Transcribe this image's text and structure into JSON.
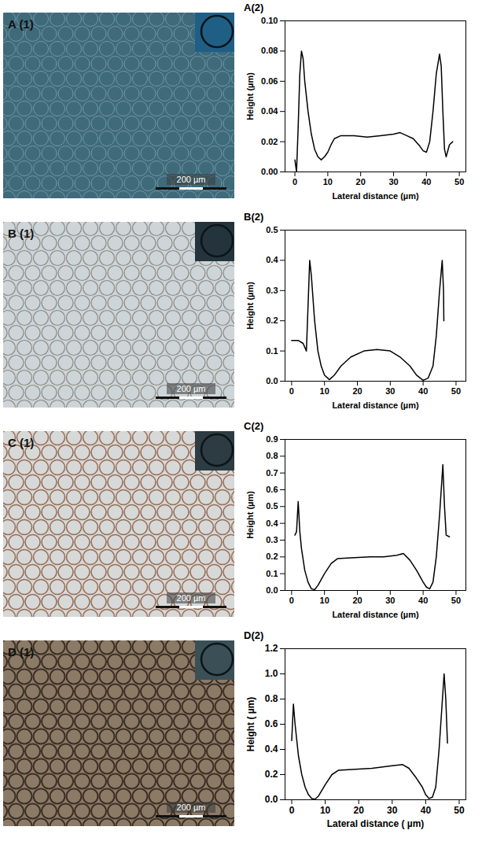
{
  "images": [
    {
      "label": "A (1)",
      "scale_bar": "200 µm"
    },
    {
      "label": "B (1)",
      "scale_bar": "200 µm"
    },
    {
      "label": "C (1)",
      "scale_bar": "200 µm"
    },
    {
      "label": "D (1)",
      "scale_bar": "200 µm"
    }
  ],
  "chart_data": [
    {
      "type": "line",
      "title": "A(2)",
      "x_label": "Lateral distance (µm)",
      "y_label": "Height (µm)",
      "color": "#000000",
      "x": [
        0,
        0.5,
        1,
        1.5,
        2,
        2.5,
        3,
        4,
        5,
        6,
        7,
        8,
        9,
        10,
        11,
        12,
        14,
        18,
        22,
        26,
        30,
        32,
        34,
        36,
        38,
        39,
        40,
        41,
        42,
        43,
        44,
        44.5,
        45,
        45.5,
        46,
        47,
        48
      ],
      "values": [
        0.008,
        0.0,
        0.03,
        0.065,
        0.08,
        0.075,
        0.06,
        0.04,
        0.025,
        0.015,
        0.01,
        0.008,
        0.01,
        0.013,
        0.018,
        0.022,
        0.024,
        0.024,
        0.023,
        0.024,
        0.025,
        0.026,
        0.024,
        0.022,
        0.017,
        0.014,
        0.013,
        0.02,
        0.04,
        0.065,
        0.078,
        0.07,
        0.04,
        0.015,
        0.01,
        0.018,
        0.02
      ],
      "xlim": [
        -3,
        52
      ],
      "xticks": [
        0,
        10,
        20,
        30,
        40,
        50
      ],
      "ylim": [
        0,
        0.1
      ],
      "yticks": [
        {
          "value": 0,
          "label": "0.00"
        },
        {
          "value": 0.02,
          "label": "0.02"
        },
        {
          "value": 0.04,
          "label": "0.04"
        },
        {
          "value": 0.06,
          "label": "0.06"
        },
        {
          "value": 0.08,
          "label": "0.08"
        },
        {
          "value": 0.1,
          "label": "0.10"
        }
      ]
    },
    {
      "type": "line",
      "title": "B(2)",
      "x_label": "Lateral distance (µm)",
      "y_label": "Height (µm)",
      "color": "#000000",
      "x": [
        0,
        2,
        3.5,
        4.5,
        5,
        5.5,
        6,
        7,
        8,
        9,
        10,
        11.5,
        13,
        15,
        18,
        22,
        26,
        30,
        33,
        36,
        38,
        40,
        41.5,
        43,
        44,
        45,
        45.8,
        46.2,
        46.3
      ],
      "values": [
        0.135,
        0.135,
        0.125,
        0.1,
        0.25,
        0.4,
        0.35,
        0.2,
        0.1,
        0.05,
        0.02,
        0.005,
        0.02,
        0.05,
        0.08,
        0.1,
        0.105,
        0.1,
        0.08,
        0.05,
        0.02,
        0.003,
        0.01,
        0.05,
        0.15,
        0.3,
        0.4,
        0.3,
        0.2
      ],
      "xlim": [
        -2,
        53
      ],
      "xticks": [
        0,
        10,
        20,
        30,
        40,
        50
      ],
      "ylim": [
        0,
        0.5
      ],
      "yticks": [
        {
          "value": 0,
          "label": "0.0"
        },
        0.1,
        0.2,
        0.3,
        0.4,
        0.5
      ]
    },
    {
      "type": "line",
      "title": "C(2)",
      "x_label": "Lateral distance (µm)",
      "y_label": "Height (µm)",
      "color": "#000000",
      "x": [
        1,
        1.5,
        2,
        2.5,
        3,
        4,
        5,
        6,
        7,
        8,
        10,
        12,
        14,
        18,
        24,
        28,
        32,
        34,
        36,
        38,
        40,
        41,
        42,
        43,
        44,
        45,
        46,
        46.5,
        47,
        48
      ],
      "values": [
        0.33,
        0.35,
        0.53,
        0.35,
        0.25,
        0.12,
        0.05,
        0.01,
        0.005,
        0.03,
        0.1,
        0.16,
        0.19,
        0.195,
        0.2,
        0.2,
        0.21,
        0.22,
        0.18,
        0.12,
        0.05,
        0.02,
        0.01,
        0.05,
        0.2,
        0.45,
        0.75,
        0.5,
        0.33,
        0.32
      ],
      "xlim": [
        -2,
        53
      ],
      "xticks": [
        0,
        10,
        20,
        30,
        40,
        50
      ],
      "ylim": [
        0,
        0.9
      ],
      "yticks": [
        {
          "value": 0,
          "label": "0.0"
        },
        0.1,
        0.2,
        0.3,
        0.4,
        0.5,
        0.6,
        0.7,
        0.8,
        0.9
      ]
    },
    {
      "type": "line",
      "title": "D(2)",
      "x_label": "Lateral distance ( µm)",
      "y_label": "Height ( µm)",
      "color": "#000000",
      "x": [
        0,
        0.5,
        1,
        2,
        3,
        4,
        5,
        6,
        7,
        8,
        10,
        12,
        14,
        18,
        24,
        30,
        33,
        35,
        37,
        39,
        40,
        41,
        42,
        43,
        44,
        45,
        45.5,
        46,
        46.5
      ],
      "values": [
        0.47,
        0.76,
        0.6,
        0.35,
        0.2,
        0.1,
        0.04,
        0.01,
        0.005,
        0.03,
        0.12,
        0.2,
        0.235,
        0.24,
        0.25,
        0.27,
        0.28,
        0.25,
        0.18,
        0.1,
        0.04,
        0.01,
        0.02,
        0.1,
        0.4,
        0.8,
        1.0,
        0.8,
        0.45
      ],
      "xlim": [
        -2,
        52
      ],
      "xticks": [
        0,
        10,
        20,
        30,
        40,
        50
      ],
      "ylim": [
        0,
        1.2
      ],
      "yticks": [
        {
          "value": 0,
          "label": "0.0"
        },
        0.2,
        0.4,
        0.6,
        0.8,
        {
          "value": 1,
          "label": "1.0"
        },
        1.2
      ]
    }
  ]
}
